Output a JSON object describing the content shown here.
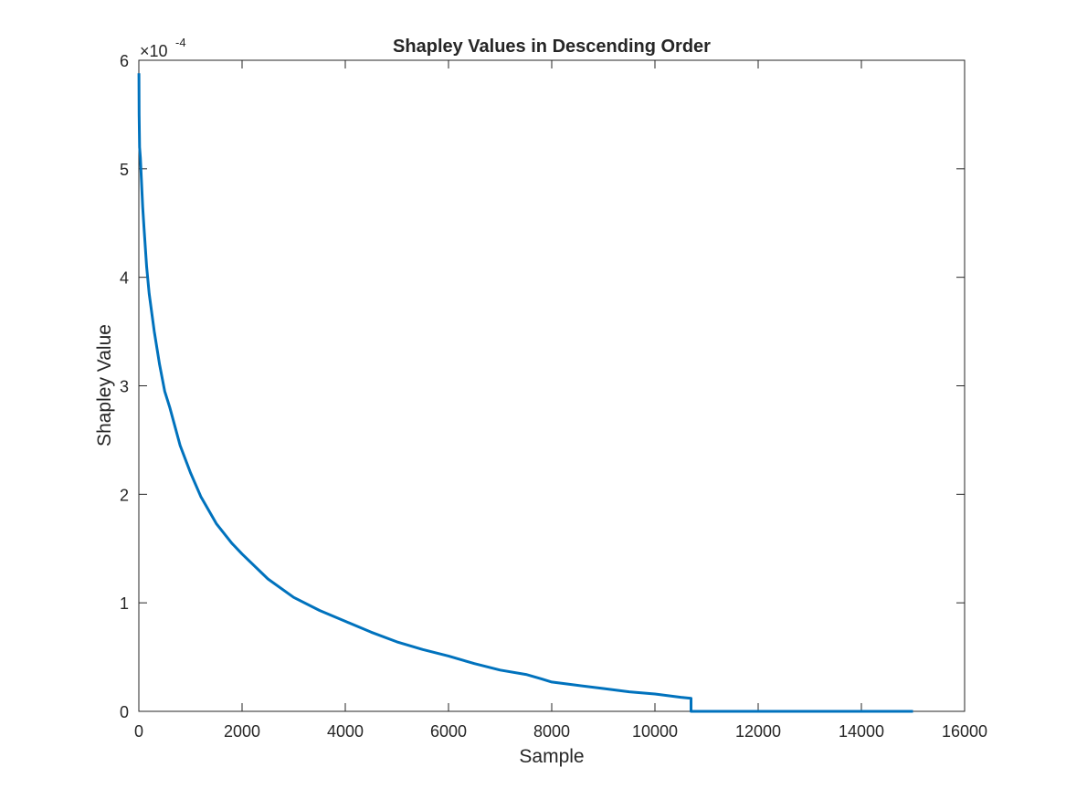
{
  "chart_data": {
    "type": "line",
    "title": "Shapley Values in Descending Order",
    "xlabel": "Sample",
    "ylabel": "Shapley Value",
    "y_exponent_label": {
      "base": "×10",
      "exponent": "-4"
    },
    "xlim": [
      0,
      16000
    ],
    "ylim": [
      0,
      6
    ],
    "xticks": [
      0,
      2000,
      4000,
      6000,
      8000,
      10000,
      12000,
      14000,
      16000
    ],
    "yticks": [
      0,
      1,
      2,
      3,
      4,
      5,
      6
    ],
    "grid": false,
    "line_color": "#0072BD",
    "series": [
      {
        "x": [
          1,
          5,
          15,
          30,
          50,
          75,
          100,
          150,
          200,
          300,
          400,
          500,
          600,
          800,
          1000,
          1200,
          1500,
          1800,
          2000,
          2500,
          3000,
          3500,
          4000,
          4500,
          5000,
          5500,
          6000,
          6500,
          7000,
          7500,
          7800,
          8000,
          8500,
          9000,
          9500,
          10000,
          10500,
          10700,
          10700,
          11000,
          12000,
          13000,
          14000,
          15000
        ],
        "values": [
          5.88,
          5.5,
          5.2,
          5.1,
          4.9,
          4.65,
          4.45,
          4.1,
          3.85,
          3.5,
          3.2,
          2.95,
          2.8,
          2.45,
          2.2,
          1.98,
          1.73,
          1.55,
          1.45,
          1.22,
          1.05,
          0.93,
          0.83,
          0.73,
          0.64,
          0.57,
          0.51,
          0.44,
          0.38,
          0.34,
          0.3,
          0.27,
          0.24,
          0.21,
          0.18,
          0.16,
          0.13,
          0.12,
          0.0,
          0.0,
          0.0,
          0.0,
          0.0,
          0.0
        ]
      }
    ]
  }
}
